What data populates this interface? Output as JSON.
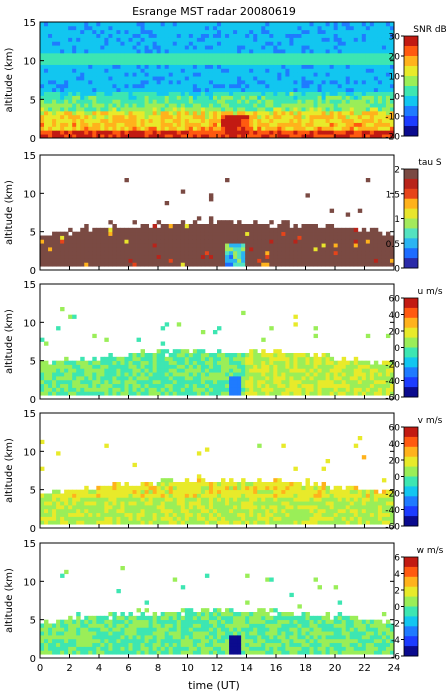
{
  "title": "Esrange MST radar 20080619",
  "xlabel": "time (UT)",
  "colors": {
    "axis": "#000000",
    "background": "#ffffff",
    "colormap": [
      "#0b0b8e",
      "#1c3cff",
      "#1f7bff",
      "#12c6f0",
      "#3de6b2",
      "#9aee58",
      "#e8ea2a",
      "#ffb21c",
      "#ff5a10",
      "#c21a12"
    ],
    "tau_colormap": [
      "#2a2aa8",
      "#1d6cff",
      "#2bb4f2",
      "#54e2c0",
      "#a3ea5d",
      "#e8e52c",
      "#ffb21c",
      "#e6441a",
      "#b8241a",
      "#7a4a43"
    ]
  },
  "chart_data": [
    {
      "type": "heatmap",
      "name": "SNR",
      "colorbar_label": "SNR dB",
      "ylabel": "altitude (km)",
      "xlim": [
        0,
        24
      ],
      "ylim": [
        0,
        15
      ],
      "x_ticks": [
        "0",
        "2",
        "4",
        "6",
        "8",
        "10",
        "12",
        "14",
        "16",
        "18",
        "20",
        "22",
        "24"
      ],
      "y_ticks": [
        "0",
        "5",
        "10",
        "15"
      ],
      "colorbar_range": [
        -20,
        30
      ],
      "colorbar_ticks": [
        "30",
        "20",
        "10",
        "0",
        "-10",
        "-20"
      ],
      "description_values": {
        "max_snr_db_near_ground": 25,
        "background_snr_db": -5
      }
    },
    {
      "type": "heatmap",
      "name": "tau",
      "colorbar_label": "tau S",
      "ylabel": "altitude (km)",
      "xlim": [
        0,
        24
      ],
      "ylim": [
        0,
        15
      ],
      "x_ticks": [
        "0",
        "2",
        "4",
        "6",
        "8",
        "10",
        "12",
        "14",
        "16",
        "18",
        "20",
        "22",
        "24"
      ],
      "y_ticks": [
        "0",
        "5",
        "10",
        "15"
      ],
      "colorbar_range": [
        0,
        2
      ],
      "colorbar_ticks": [
        "2",
        "1.5",
        "1",
        "0.5",
        "0"
      ],
      "description_values": {
        "typical_tau_s": 2
      }
    },
    {
      "type": "heatmap",
      "name": "u",
      "colorbar_label": "u m/s",
      "ylabel": "altitude (km)",
      "xlim": [
        0,
        24
      ],
      "ylim": [
        0,
        15
      ],
      "x_ticks": [
        "0",
        "2",
        "4",
        "6",
        "8",
        "10",
        "12",
        "14",
        "16",
        "18",
        "20",
        "22",
        "24"
      ],
      "y_ticks": [
        "0",
        "5",
        "10",
        "15"
      ],
      "colorbar_range": [
        -60,
        60
      ],
      "colorbar_ticks": [
        "60",
        "40",
        "20",
        "0",
        "-20",
        "-40",
        "-60"
      ],
      "description_values": {
        "typical_u_ms": 5
      }
    },
    {
      "type": "heatmap",
      "name": "v",
      "colorbar_label": "v m/s",
      "ylabel": "altitude (km)",
      "xlim": [
        0,
        24
      ],
      "ylim": [
        0,
        15
      ],
      "x_ticks": [
        "0",
        "2",
        "4",
        "6",
        "8",
        "10",
        "12",
        "14",
        "16",
        "18",
        "20",
        "22",
        "24"
      ],
      "y_ticks": [
        "0",
        "5",
        "10",
        "15"
      ],
      "colorbar_range": [
        -60,
        60
      ],
      "colorbar_ticks": [
        "60",
        "40",
        "20",
        "0",
        "-20",
        "-40",
        "-60"
      ],
      "description_values": {
        "typical_v_ms": 10
      }
    },
    {
      "type": "heatmap",
      "name": "w",
      "colorbar_label": "w m/s",
      "ylabel": "altitude (km)",
      "xlim": [
        0,
        24
      ],
      "ylim": [
        0,
        15
      ],
      "x_ticks": [
        "0",
        "2",
        "4",
        "6",
        "8",
        "10",
        "12",
        "14",
        "16",
        "18",
        "20",
        "22",
        "24"
      ],
      "y_ticks": [
        "0",
        "5",
        "10",
        "15"
      ],
      "colorbar_range": [
        -6,
        6
      ],
      "colorbar_ticks": [
        "6",
        "4",
        "2",
        "0",
        "-2",
        "-4",
        "-6"
      ],
      "description_values": {
        "typical_w_ms": 0
      }
    }
  ]
}
